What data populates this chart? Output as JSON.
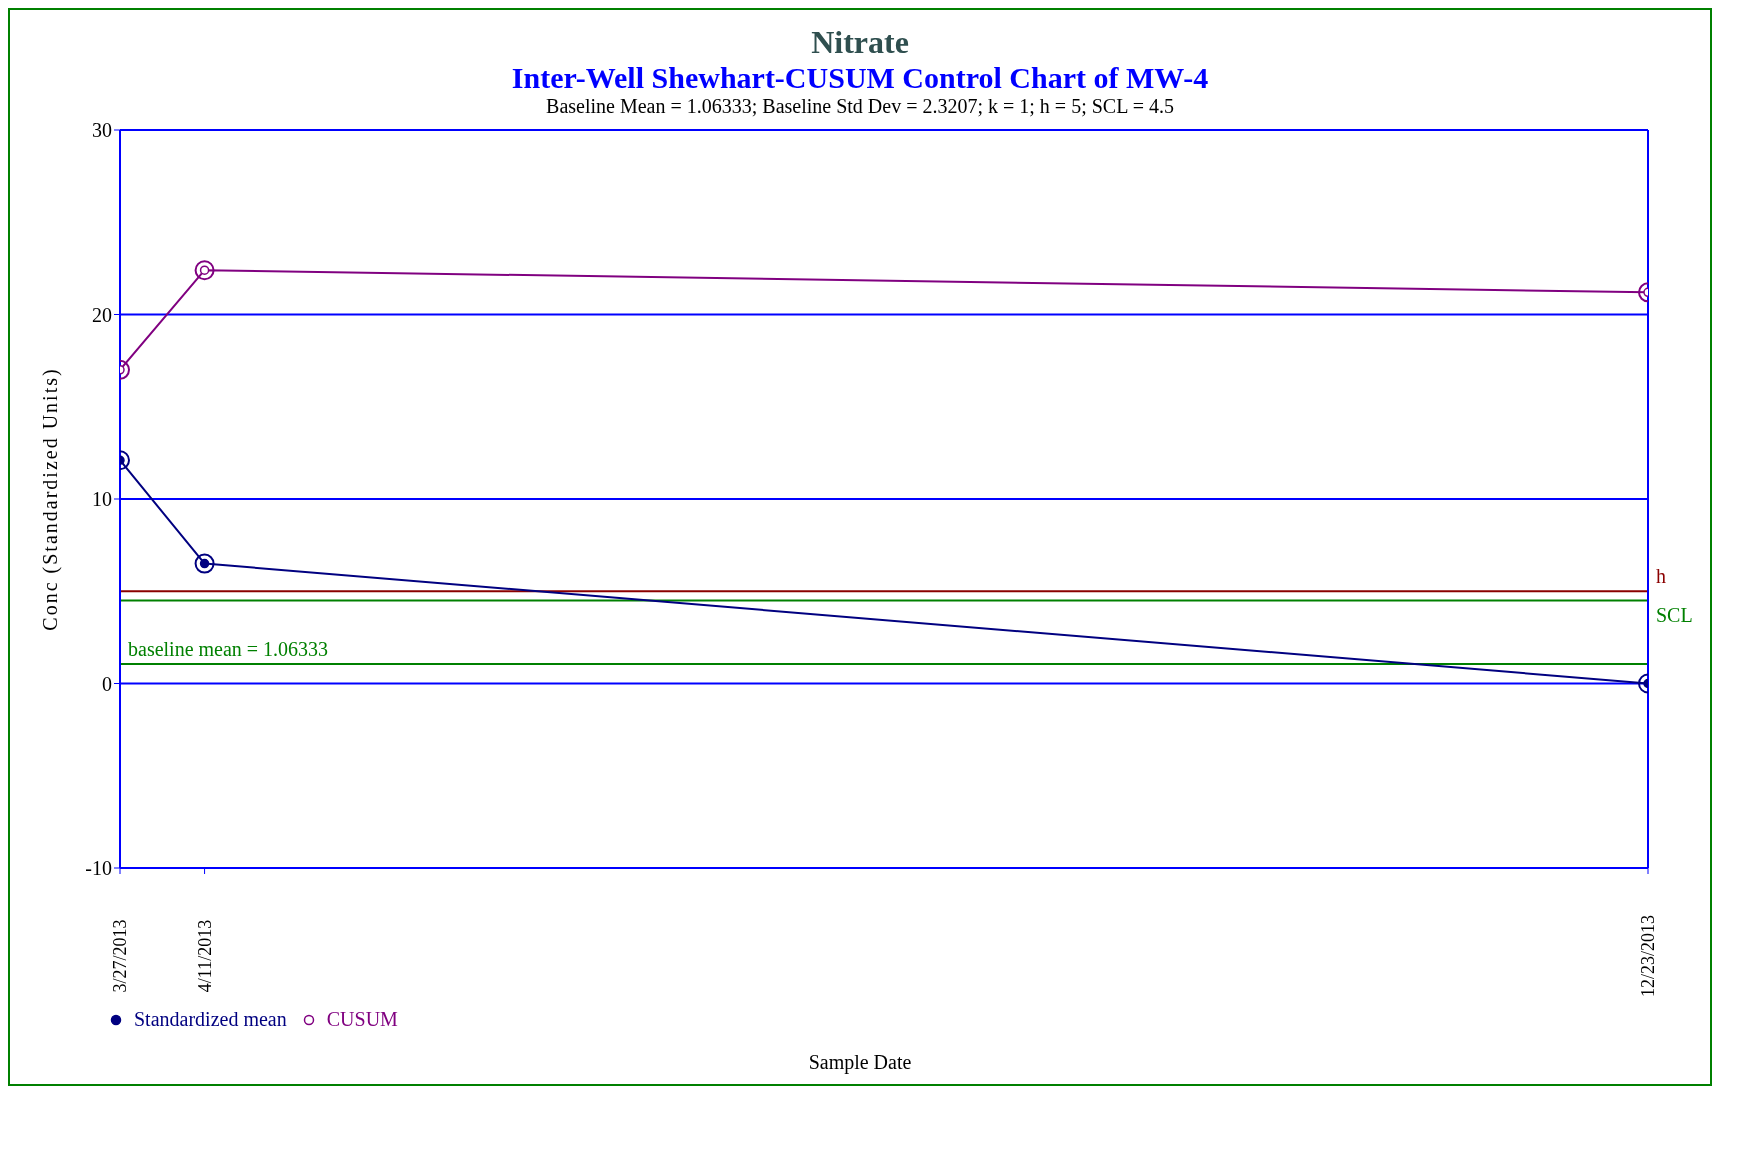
{
  "chart_data": {
    "type": "line",
    "title": "Nitrate",
    "subtitle": "Inter-Well Shewhart-CUSUM Control Chart of MW-4",
    "annotations": [
      "Baseline Mean = 1.06333; Baseline Std Dev = 2.3207; k = 1; h = 5; SCL = 4.5"
    ],
    "xlabel": "Sample Date",
    "ylabel": "Conc (Standardized Units)",
    "x": [
      "2013-03-27",
      "2013-04-11",
      "2013-12-23"
    ],
    "series": [
      {
        "name": "Standardized mean",
        "color": "#000080",
        "values": [
          12.1,
          6.5,
          0
        ]
      },
      {
        "name": "CUSUM",
        "color": "#800080",
        "values": [
          17.0,
          22.4,
          21.2
        ]
      }
    ],
    "xlim": [
      "2013-03-27",
      "2013-12-23"
    ],
    "xticks": [
      {
        "value": "2013-03-27",
        "label": "3/27/2013"
      },
      {
        "value": "2013-04-11",
        "label": "4/11/2013"
      },
      {
        "value": "2013-12-23",
        "label": "12/23/2013"
      }
    ],
    "ylim": [
      -10,
      30
    ],
    "yticks": [
      -10,
      0,
      10,
      20,
      30
    ],
    "ref_lines": [
      {
        "axis": "y",
        "value": 5,
        "label": "h",
        "color": "#8b0000"
      },
      {
        "axis": "y",
        "value": 4.5,
        "label": "SCL",
        "color": "#008000"
      },
      {
        "axis": "y",
        "value": 1.06333,
        "label": "baseline mean = 1.06333",
        "color": "#008000"
      }
    ],
    "grid": "y",
    "legend": "bottom left",
    "marker": "circle",
    "line_style": "solid"
  }
}
